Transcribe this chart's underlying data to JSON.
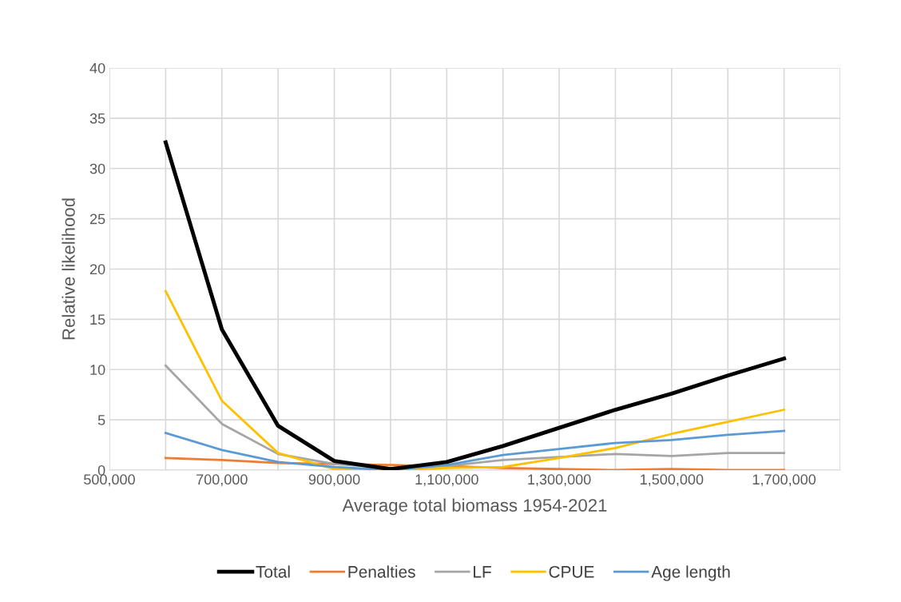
{
  "chart_data": {
    "type": "line",
    "xlabel": "Average total biomass 1954-2021",
    "ylabel": "Relative likelihood",
    "x": [
      600000,
      700000,
      800000,
      900000,
      1000000,
      1100000,
      1200000,
      1300000,
      1400000,
      1500000,
      1600000,
      1700000
    ],
    "series": [
      {
        "name": "Total",
        "color": "#000000",
        "values": [
          32.6,
          14.0,
          4.4,
          0.9,
          0.1,
          0.8,
          2.4,
          4.2,
          6.0,
          7.6,
          9.4,
          11.1
        ]
      },
      {
        "name": "Penalties",
        "color": "#ed7d31",
        "values": [
          1.2,
          1.0,
          0.7,
          0.6,
          0.5,
          0.4,
          0.2,
          0.1,
          0.0,
          0.1,
          0.0,
          0.0
        ]
      },
      {
        "name": "LF",
        "color": "#a5a5a5",
        "values": [
          10.4,
          4.6,
          1.6,
          0.6,
          0.2,
          0.4,
          1.0,
          1.3,
          1.6,
          1.4,
          1.7,
          1.7
        ]
      },
      {
        "name": "CPUE",
        "color": "#ffc000",
        "values": [
          17.8,
          6.9,
          1.7,
          0.1,
          0.0,
          0.2,
          0.3,
          1.2,
          2.2,
          3.6,
          4.8,
          6.0
        ]
      },
      {
        "name": "Age length",
        "color": "#5b9bd5",
        "values": [
          3.7,
          2.0,
          0.8,
          0.3,
          0.0,
          0.5,
          1.5,
          2.1,
          2.7,
          3.0,
          3.5,
          3.9
        ]
      }
    ],
    "xlim": [
      500000,
      1800000
    ],
    "xticks": [
      {
        "value": 500000,
        "label": "500,000"
      },
      {
        "value": 700000,
        "label": "700,000"
      },
      {
        "value": 900000,
        "label": "900,000"
      },
      {
        "value": 1100000,
        "label": "1,100,000"
      },
      {
        "value": 1300000,
        "label": "1,300,000"
      },
      {
        "value": 1500000,
        "label": "1,500,000"
      },
      {
        "value": 1700000,
        "label": "1,700,000"
      }
    ],
    "ylim": [
      0,
      40
    ],
    "yticks": [
      0,
      5,
      10,
      15,
      20,
      25,
      30,
      35,
      40
    ],
    "grid": true,
    "legend": "bottom",
    "marker": "none",
    "line_style": "solid"
  }
}
